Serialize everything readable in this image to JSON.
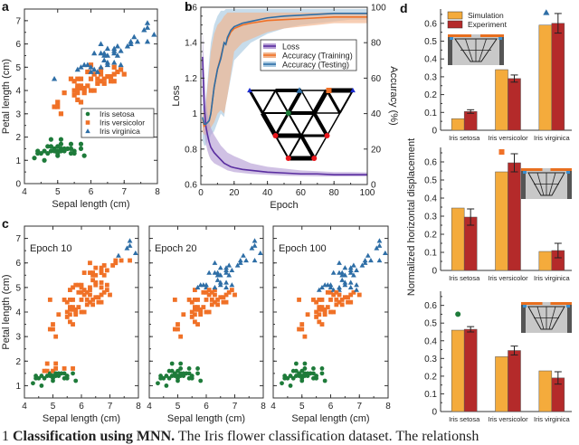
{
  "colors": {
    "setosa": "#1e7b3a",
    "versicolor": "#f07127",
    "virginica": "#2e6ea6",
    "loss": "#5a2ea0",
    "loss_band": "#b79fd6",
    "train": "#f07127",
    "train_band": "#f2b48c",
    "test": "#2e6ea6",
    "test_band": "#a9c9e0",
    "simulation": "#f4ab3c",
    "experiment": "#b42a2a",
    "node_red": "#e8161b",
    "node_blue": "#1a2bd0"
  },
  "panel_labels": [
    "a",
    "b",
    "c",
    "d"
  ],
  "caption": {
    "prefix": "1",
    "bold": "Classification using MNN.",
    "text": " The Iris flower classification dataset. The relationsh"
  },
  "chart_data": [
    {
      "id": "a",
      "type": "scatter",
      "title": "",
      "xlabel": "Sepal length (cm)",
      "ylabel": "Petal length (cm)",
      "xlim": [
        4,
        8
      ],
      "ylim": [
        0,
        7.5
      ],
      "xticks": [
        "4",
        "5",
        "6",
        "7",
        "8"
      ],
      "yticks": [
        "0",
        "1",
        "2",
        "3",
        "4",
        "5",
        "6",
        "7"
      ],
      "legend": {
        "placement": "center-right",
        "entries": [
          "Iris setosa",
          "Iris versicolor",
          "Iris virginica"
        ]
      },
      "series": [
        {
          "name": "Iris setosa",
          "marker": "circle",
          "points": [
            [
              4.3,
              1.1
            ],
            [
              4.4,
              1.3
            ],
            [
              4.4,
              1.4
            ],
            [
              4.5,
              1.3
            ],
            [
              4.6,
              1.0
            ],
            [
              4.6,
              1.4
            ],
            [
              4.7,
              1.3
            ],
            [
              4.7,
              1.6
            ],
            [
              4.8,
              1.4
            ],
            [
              4.8,
              1.6
            ],
            [
              4.8,
              1.9
            ],
            [
              4.9,
              1.4
            ],
            [
              4.9,
              1.5
            ],
            [
              5.0,
              1.2
            ],
            [
              5.0,
              1.4
            ],
            [
              5.0,
              1.6
            ],
            [
              5.0,
              1.3
            ],
            [
              5.1,
              1.4
            ],
            [
              5.1,
              1.5
            ],
            [
              5.1,
              1.7
            ],
            [
              5.1,
              1.9
            ],
            [
              5.2,
              1.4
            ],
            [
              5.2,
              1.5
            ],
            [
              5.3,
              1.5
            ],
            [
              5.4,
              1.3
            ],
            [
              5.4,
              1.5
            ],
            [
              5.4,
              1.7
            ],
            [
              5.5,
              1.3
            ],
            [
              5.5,
              1.4
            ],
            [
              5.7,
              1.5
            ],
            [
              5.7,
              1.7
            ],
            [
              5.8,
              1.2
            ]
          ]
        },
        {
          "name": "Iris versicolor",
          "marker": "square",
          "points": [
            [
              4.9,
              3.3
            ],
            [
              5.0,
              3.3
            ],
            [
              5.0,
              3.5
            ],
            [
              5.1,
              3.0
            ],
            [
              5.2,
              3.9
            ],
            [
              5.4,
              4.5
            ],
            [
              5.5,
              3.8
            ],
            [
              5.5,
              4.0
            ],
            [
              5.5,
              4.4
            ],
            [
              5.6,
              3.6
            ],
            [
              5.6,
              3.9
            ],
            [
              5.6,
              4.1
            ],
            [
              5.6,
              4.2
            ],
            [
              5.6,
              4.5
            ],
            [
              5.7,
              3.5
            ],
            [
              5.7,
              4.1
            ],
            [
              5.7,
              4.2
            ],
            [
              5.7,
              4.5
            ],
            [
              5.8,
              3.9
            ],
            [
              5.8,
              4.0
            ],
            [
              5.8,
              4.1
            ],
            [
              5.9,
              4.2
            ],
            [
              5.9,
              4.8
            ],
            [
              6.0,
              4.0
            ],
            [
              6.0,
              4.5
            ],
            [
              6.0,
              5.1
            ],
            [
              6.1,
              4.0
            ],
            [
              6.1,
              4.7
            ],
            [
              6.2,
              4.3
            ],
            [
              6.2,
              4.5
            ],
            [
              6.3,
              4.4
            ],
            [
              6.3,
              4.7
            ],
            [
              6.3,
              4.9
            ],
            [
              6.4,
              4.3
            ],
            [
              6.4,
              4.5
            ],
            [
              6.5,
              4.6
            ],
            [
              6.6,
              4.4
            ],
            [
              6.6,
              4.6
            ],
            [
              6.7,
              4.4
            ],
            [
              6.7,
              4.7
            ],
            [
              6.7,
              5.0
            ],
            [
              6.8,
              4.8
            ],
            [
              6.9,
              4.9
            ],
            [
              7.0,
              4.7
            ]
          ]
        },
        {
          "name": "Iris virginica",
          "marker": "triangle",
          "points": [
            [
              4.9,
              4.5
            ],
            [
              5.6,
              4.9
            ],
            [
              5.7,
              5.0
            ],
            [
              5.8,
              5.1
            ],
            [
              5.9,
              5.1
            ],
            [
              6.0,
              4.8
            ],
            [
              6.0,
              5.0
            ],
            [
              6.1,
              4.9
            ],
            [
              6.1,
              5.6
            ],
            [
              6.2,
              4.8
            ],
            [
              6.3,
              5.0
            ],
            [
              6.3,
              5.6
            ],
            [
              6.3,
              6.0
            ],
            [
              6.4,
              5.3
            ],
            [
              6.4,
              5.5
            ],
            [
              6.4,
              5.6
            ],
            [
              6.5,
              5.1
            ],
            [
              6.5,
              5.2
            ],
            [
              6.5,
              5.5
            ],
            [
              6.5,
              5.8
            ],
            [
              6.7,
              5.2
            ],
            [
              6.7,
              5.6
            ],
            [
              6.7,
              5.7
            ],
            [
              6.7,
              5.8
            ],
            [
              6.8,
              5.5
            ],
            [
              6.8,
              5.9
            ],
            [
              6.9,
              5.1
            ],
            [
              6.9,
              5.7
            ],
            [
              7.1,
              5.9
            ],
            [
              7.2,
              6.0
            ],
            [
              7.2,
              6.1
            ],
            [
              7.3,
              6.3
            ],
            [
              7.4,
              6.1
            ],
            [
              7.6,
              6.6
            ],
            [
              7.7,
              6.1
            ],
            [
              7.7,
              6.7
            ],
            [
              7.7,
              6.9
            ],
            [
              7.9,
              6.4
            ]
          ]
        }
      ]
    },
    {
      "id": "b",
      "type": "line",
      "xlabel": "Epoch",
      "ylabel": "Loss",
      "y2label": "Accuracy (%)",
      "xlim": [
        0,
        100
      ],
      "ylim": [
        0.6,
        1.6
      ],
      "y2lim": [
        0,
        100
      ],
      "xticks": [
        "0",
        "20",
        "40",
        "60",
        "80",
        "100"
      ],
      "yticks": [
        "0.6",
        "0.8",
        "1",
        "1.2",
        "1.4",
        "1.6"
      ],
      "y2ticks": [
        "0",
        "20",
        "40",
        "60",
        "80",
        "100"
      ],
      "legend": {
        "placement": "top-right",
        "entries": [
          "Loss",
          "Accuracy (Training)",
          "Accuracy (Testing)"
        ]
      },
      "x": [
        1,
        2,
        3,
        4,
        5,
        6,
        8,
        10,
        12,
        14,
        15,
        16,
        18,
        20,
        25,
        30,
        40,
        50,
        60,
        70,
        80,
        90,
        100
      ],
      "series": [
        {
          "name": "Loss",
          "axis": "left",
          "values": [
            1.32,
            1.05,
            0.93,
            0.88,
            0.84,
            0.81,
            0.78,
            0.76,
            0.74,
            0.72,
            0.715,
            0.71,
            0.7,
            0.695,
            0.685,
            0.68,
            0.67,
            0.665,
            0.66,
            0.66,
            0.655,
            0.655,
            0.655
          ],
          "band_low": [
            1.15,
            0.9,
            0.83,
            0.79,
            0.76,
            0.74,
            0.72,
            0.71,
            0.7,
            0.69,
            0.685,
            0.68,
            0.675,
            0.67,
            0.665,
            0.66,
            0.655,
            0.65,
            0.648,
            0.646,
            0.645,
            0.645,
            0.645
          ],
          "band_high": [
            1.48,
            1.25,
            1.08,
            1.0,
            0.95,
            0.92,
            0.88,
            0.85,
            0.82,
            0.8,
            0.79,
            0.78,
            0.77,
            0.76,
            0.74,
            0.72,
            0.7,
            0.69,
            0.68,
            0.675,
            0.67,
            0.67,
            0.668
          ]
        },
        {
          "name": "Accuracy (Training)",
          "axis": "right",
          "values": [
            37,
            33,
            34,
            35,
            36,
            40,
            55,
            65,
            72,
            80,
            79,
            82,
            86,
            88,
            90,
            91,
            92.5,
            93,
            93.5,
            94,
            94.5,
            94.5,
            94.5
          ],
          "band_low": [
            30,
            28,
            28,
            30,
            30,
            32,
            35,
            40,
            42,
            40,
            45,
            50,
            62,
            75,
            80,
            82,
            86,
            88,
            89,
            90,
            91,
            91,
            91
          ],
          "band_high": [
            42,
            40,
            45,
            55,
            65,
            75,
            85,
            90,
            92,
            95,
            96,
            97,
            97,
            97,
            97,
            97,
            97,
            97,
            97,
            97,
            97,
            97,
            97
          ]
        },
        {
          "name": "Accuracy (Testing)",
          "axis": "right",
          "values": [
            38,
            34,
            34,
            35,
            36,
            40,
            55,
            65,
            71,
            80,
            79,
            83,
            87,
            89,
            91,
            92,
            94,
            95,
            95.5,
            96,
            96.5,
            96.5,
            96.5
          ],
          "band_low": [
            25,
            22,
            22,
            25,
            25,
            28,
            30,
            35,
            40,
            38,
            45,
            50,
            60,
            70,
            75,
            80,
            85,
            88,
            90,
            91,
            92,
            93,
            93
          ],
          "band_high": [
            45,
            42,
            48,
            58,
            70,
            80,
            90,
            95,
            98,
            98,
            99,
            99,
            99,
            99,
            99,
            99,
            99,
            99,
            99,
            99,
            99,
            99,
            99
          ]
        }
      ],
      "inset": {
        "description": "triangular lattice network diagram",
        "input_nodes": [
          "green",
          "red"
        ],
        "output_nodes": [
          "virginica-triangle",
          "versicolor-square"
        ]
      }
    },
    {
      "id": "c",
      "type": "scatter",
      "xlabel": "Sepal length (cm)",
      "ylabel": "Petal length (cm)",
      "xlim": [
        4,
        8
      ],
      "ylim": [
        0.5,
        7.5
      ],
      "xticks": [
        "4",
        "5",
        "6",
        "7",
        "8"
      ],
      "yticks": [
        "1",
        "2",
        "3",
        "4",
        "5",
        "6",
        "7"
      ],
      "subplots": [
        {
          "title": "Epoch 10",
          "virginica_threshold_petal": 6.2,
          "note": "predicted classes; most points classified as versicolor"
        },
        {
          "title": "Epoch 20",
          "virginica_threshold_petal": 5.0
        },
        {
          "title": "Epoch 100",
          "virginica_threshold_petal": 4.85
        }
      ]
    },
    {
      "id": "d",
      "type": "bar",
      "ylabel": "Normalized horizontal displacement",
      "categories": [
        "Iris setosa",
        "Iris versicolor",
        "Iris virginica"
      ],
      "ylim": [
        0,
        0.68
      ],
      "yticks": [
        "0",
        "0.1",
        "0.2",
        "0.3",
        "0.4",
        "0.5",
        "0.6"
      ],
      "legend": {
        "placement": "top-left",
        "entries": [
          "Simulation",
          "Experiment"
        ]
      },
      "subplots": [
        {
          "marker": "triangle",
          "marker_category": "Iris virginica",
          "marker_value": 0.66,
          "series": [
            {
              "name": "Simulation",
              "values": [
                0.065,
                0.34,
                0.59
              ]
            },
            {
              "name": "Experiment",
              "values": [
                0.105,
                0.29,
                0.6
              ],
              "errors": [
                0.01,
                0.02,
                0.055
              ]
            }
          ]
        },
        {
          "marker": "square",
          "marker_category": "Iris versicolor",
          "marker_value": 0.655,
          "series": [
            {
              "name": "Simulation",
              "values": [
                0.345,
                0.545,
                0.105
              ]
            },
            {
              "name": "Experiment",
              "values": [
                0.295,
                0.595,
                0.11
              ],
              "errors": [
                0.045,
                0.05,
                0.04
              ]
            }
          ]
        },
        {
          "marker": "circle",
          "marker_category": "Iris setosa",
          "marker_value": 0.55,
          "series": [
            {
              "name": "Simulation",
              "values": [
                0.46,
                0.31,
                0.23
              ]
            },
            {
              "name": "Experiment",
              "values": [
                0.465,
                0.345,
                0.19
              ],
              "errors": [
                0.015,
                0.025,
                0.035
              ]
            }
          ]
        }
      ]
    }
  ]
}
